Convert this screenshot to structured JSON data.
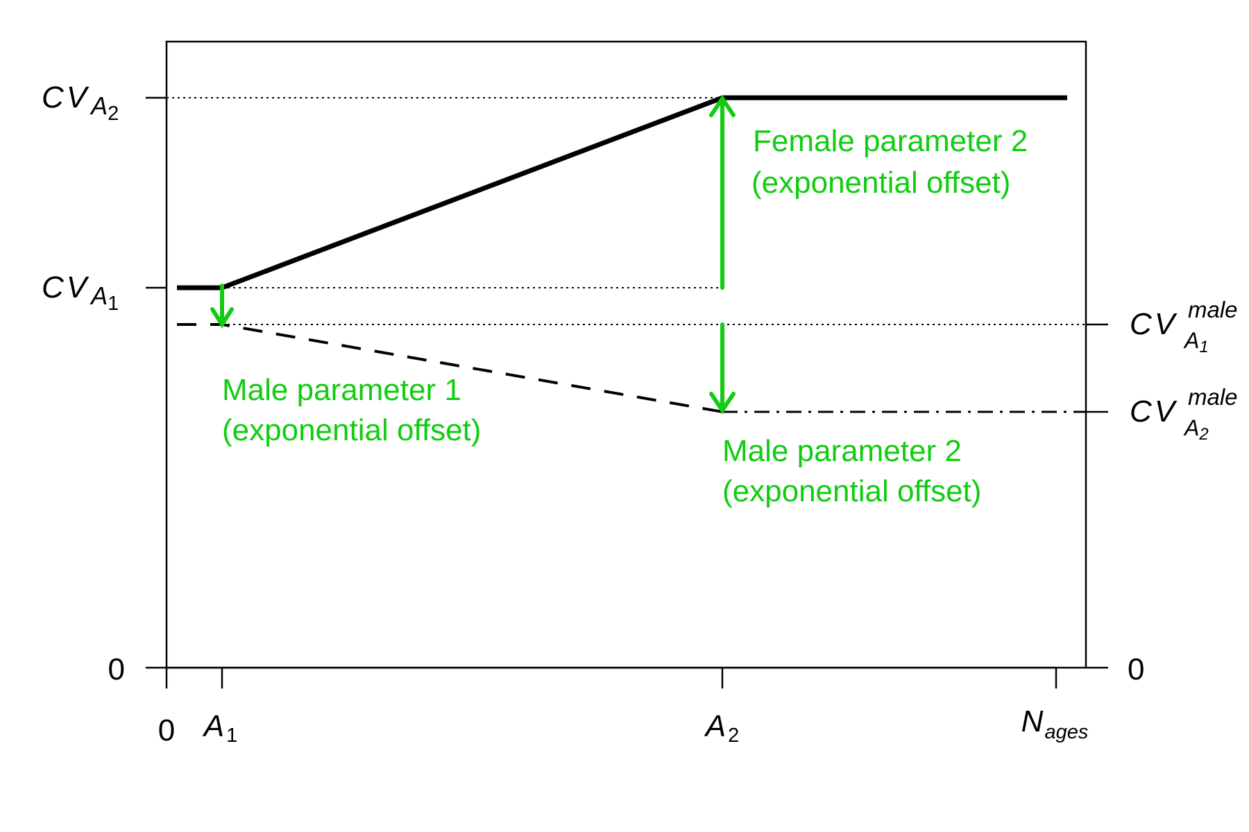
{
  "colors": {
    "curve": "#000000",
    "arrow": "#11cc11"
  },
  "axes": {
    "x_tick_zero": "0",
    "y_tick_zero_left": "0",
    "y_tick_zero_right": "0",
    "x_ticks": [
      {
        "base": "A",
        "sub": "1"
      },
      {
        "base": "A",
        "sub": "2"
      },
      {
        "base": "N",
        "sub": "ages"
      }
    ],
    "y_left_ticks": [
      {
        "base": "CV",
        "sub_base": "A",
        "sub_index": "2"
      },
      {
        "base": "CV",
        "sub_base": "A",
        "sub_index": "1"
      }
    ],
    "y_right_ticks": [
      {
        "base": "CV",
        "sup": "male",
        "sub_base": "A",
        "sub_index": "1"
      },
      {
        "base": "CV",
        "sup": "male",
        "sub_base": "A",
        "sub_index": "2"
      }
    ]
  },
  "annotations": {
    "female_param2": {
      "line1": "Female parameter 2",
      "line2": "(exponential offset)"
    },
    "male_param1": {
      "line1": "Male parameter 1",
      "line2": "(exponential offset)"
    },
    "male_param2": {
      "line1": "Male parameter 2",
      "line2": "(exponential offset)"
    }
  }
}
